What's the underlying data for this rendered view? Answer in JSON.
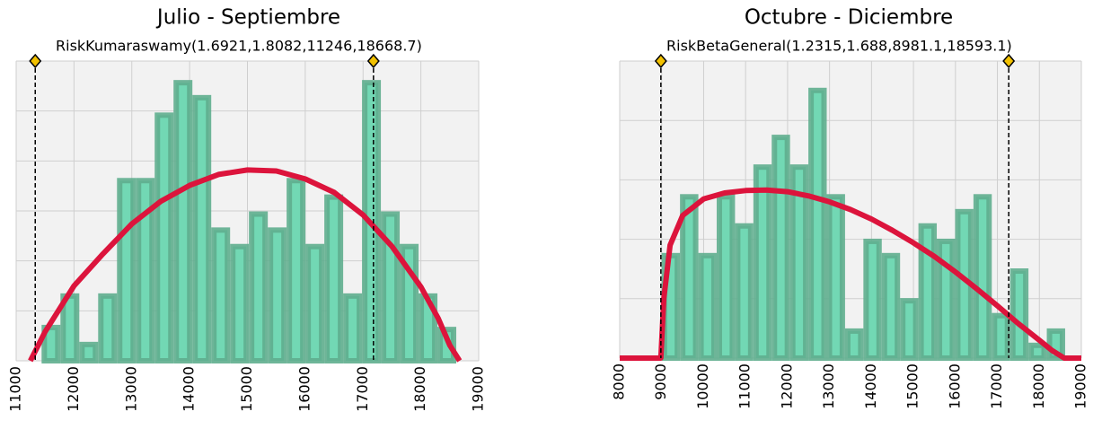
{
  "chart_data": [
    {
      "type": "histogram",
      "title": "Julio - Septiembre",
      "subtitle": "RiskKumaraswamy(1.6921,1.8082,11246,18668.7)",
      "bins": [
        11440,
        11766,
        12092,
        12418,
        12744,
        13070,
        13396,
        13722,
        14048,
        14374,
        14700,
        15026,
        15352,
        15678,
        16004,
        16330,
        16656,
        16982,
        17308,
        17634,
        17960,
        18286,
        18612
      ],
      "values": [
        0.72,
        1.35,
        0.38,
        1.35,
        3.66,
        3.66,
        4.97,
        5.62,
        5.32,
        2.67,
        2.34,
        2.99,
        2.67,
        3.66,
        2.34,
        3.33,
        1.35,
        5.62,
        2.99,
        2.34,
        1.35,
        0.68
      ],
      "color": "#72d8b4",
      "edge_color": "#5fae8e",
      "curve": {
        "color": "#dc143c",
        "x": [
          11246,
          11500,
          12000,
          12500,
          13000,
          13500,
          14000,
          14500,
          15000,
          15500,
          16000,
          16500,
          17000,
          17500,
          18000,
          18300,
          18500,
          18668.7
        ],
        "y": [
          0,
          0.58,
          1.5,
          2.14,
          2.74,
          3.19,
          3.51,
          3.73,
          3.82,
          3.8,
          3.64,
          3.37,
          2.92,
          2.29,
          1.48,
          0.85,
          0.31,
          0
        ]
      },
      "markers": [
        11330,
        17180
      ],
      "xlim": [
        11000,
        19000
      ],
      "xticks": [
        11000,
        12000,
        13000,
        14000,
        15000,
        16000,
        17000,
        18000,
        19000
      ],
      "ylim": [
        0,
        6
      ],
      "yticks": [
        0,
        1,
        2,
        3,
        4,
        5,
        6
      ],
      "grid": true
    },
    {
      "type": "histogram",
      "title": "Octubre - Diciembre",
      "subtitle": "RiskBetaGeneral(1.2315,1.688,8981.1,18593.1)",
      "bins": [
        9000,
        9437,
        9874,
        10311,
        10748,
        11185,
        11622,
        12059,
        12496,
        12933,
        13370,
        13807,
        14244,
        14681,
        15118,
        15555,
        15992,
        16429,
        16866,
        17303,
        17740,
        18177,
        18614
      ],
      "values": [
        1.77,
        2.76,
        1.77,
        2.76,
        2.27,
        3.26,
        3.76,
        3.26,
        4.55,
        2.76,
        0.5,
        2.01,
        1.77,
        1.01,
        2.27,
        2.01,
        2.51,
        2.76,
        0.76,
        1.51,
        0.26,
        0.5
      ],
      "color": "#72d8b4",
      "edge_color": "#5fae8e",
      "curve": {
        "color": "#dc143c",
        "x": [
          8000,
          8981.1,
          9050,
          9200,
          9500,
          10000,
          10500,
          11000,
          11500,
          12000,
          12500,
          13000,
          13500,
          14000,
          14500,
          15000,
          15500,
          16000,
          16500,
          17000,
          17500,
          18000,
          18300,
          18593.1,
          19000
        ],
        "y": [
          0,
          0,
          1.0,
          1.9,
          2.4,
          2.68,
          2.78,
          2.82,
          2.83,
          2.8,
          2.73,
          2.63,
          2.5,
          2.34,
          2.15,
          1.94,
          1.71,
          1.45,
          1.17,
          0.88,
          0.58,
          0.3,
          0.13,
          0,
          0
        ]
      },
      "markers": [
        8981.1,
        17270
      ],
      "xlim": [
        8000,
        19000
      ],
      "xticks": [
        8000,
        9000,
        10000,
        11000,
        12000,
        13000,
        14000,
        15000,
        16000,
        17000,
        18000,
        19000
      ],
      "ylim": [
        0,
        5
      ],
      "yticks": [
        0,
        1,
        2,
        3,
        4,
        5
      ],
      "grid": true
    }
  ]
}
